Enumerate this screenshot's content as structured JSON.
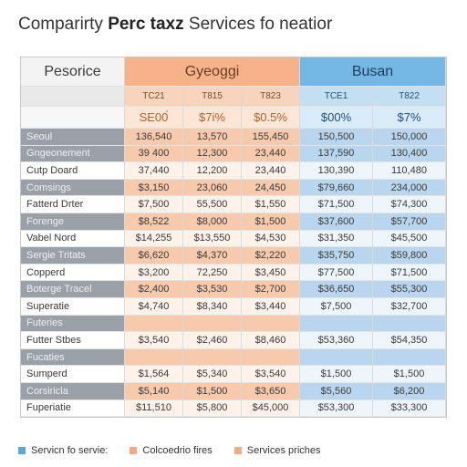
{
  "title": {
    "prefix": "Comparirty ",
    "bold": "Perc taxz",
    "suffix": " Services fo neatior"
  },
  "header": {
    "label": "Pesorice",
    "group_g": "Gyeoggi",
    "group_b": "Busan"
  },
  "subheader": [
    "TC21",
    "T815",
    "T823",
    "TCE1",
    "T822"
  ],
  "subheader2": [
    "SE00́",
    "$7i%",
    "$0.5%",
    "$00%",
    "$7%"
  ],
  "rows": [
    {
      "label": "Seoul",
      "style": "dark",
      "values": [
        "136,540",
        "13,570",
        "155,450",
        "150,500",
        "150,000"
      ]
    },
    {
      "label": "Gngeonement",
      "style": "dark",
      "values": [
        "39 400",
        "12,300",
        "23,440",
        "137,590",
        "130,400"
      ]
    },
    {
      "label": "Cutp Doard",
      "style": "light",
      "values": [
        "37,440",
        "12,200",
        "23,440",
        "130,390",
        "110,480"
      ]
    },
    {
      "label": "Comsings",
      "style": "dark",
      "values": [
        "$3,150",
        "23,060",
        "24,450",
        "$79,660",
        "234,000"
      ]
    },
    {
      "label": "Fatterd Drter",
      "style": "light",
      "values": [
        "$7,500",
        "55,500",
        "$1,550",
        "$71,500",
        "$74,300"
      ]
    },
    {
      "label": "Forenge",
      "style": "dark",
      "values": [
        "$8,522",
        "$8,000",
        "$1,500",
        "$37,600",
        "$57,700"
      ]
    },
    {
      "label": "Vabel Nord",
      "style": "light",
      "values": [
        "$14,255",
        "$13,550",
        "$4,530",
        "$31,350",
        "$45,500"
      ]
    },
    {
      "label": "Sergie Tritats",
      "style": "dark",
      "values": [
        "$6,620",
        "$4,370",
        "$2,220",
        "$35,750",
        "$59,800"
      ]
    },
    {
      "label": "Copperd",
      "style": "light",
      "values": [
        "$3,200",
        "72,250",
        "$3,450",
        "$77,500",
        "$71,500"
      ]
    },
    {
      "label": "Boterge Tracel",
      "style": "dark",
      "values": [
        "$2,400",
        "$3,530",
        "$2,700",
        "$36,650",
        "$55,300"
      ]
    },
    {
      "label": "Superatie",
      "style": "light",
      "values": [
        "$4,740",
        "$8,340",
        "$3,440",
        "$7,500",
        "$32,700"
      ]
    },
    {
      "label": "Futeries",
      "style": "dark",
      "values": [
        "",
        "",
        "",
        "",
        ""
      ]
    },
    {
      "label": "Futter Stbes",
      "style": "light",
      "values": [
        "$3,540",
        "$2,460",
        "$8,460",
        "$53,360",
        "$54,350"
      ]
    },
    {
      "label": "Fucaties",
      "style": "dark",
      "values": [
        "",
        "",
        "",
        "",
        ""
      ]
    },
    {
      "label": "Sumperd",
      "style": "light",
      "values": [
        "$1,564",
        "$5,340",
        "$3,540",
        "$1,500",
        "$1,500"
      ]
    },
    {
      "label": "Corsiricla",
      "style": "dark",
      "values": [
        "$5,140",
        "$1,500",
        "$3,650",
        "$5,560",
        "$6,200"
      ]
    },
    {
      "label": "Fuperiatie",
      "style": "light",
      "values": [
        "$11,510",
        "$5,800",
        "$45,000",
        "$53,300",
        "$33,300"
      ]
    }
  ],
  "legend": [
    {
      "label": "Servicn fo servie:",
      "color": "#5aa7d8"
    },
    {
      "label": "Colcoedrio fires",
      "color": "#f5a883"
    },
    {
      "label": "Services priches",
      "color": "#f5a883"
    }
  ]
}
